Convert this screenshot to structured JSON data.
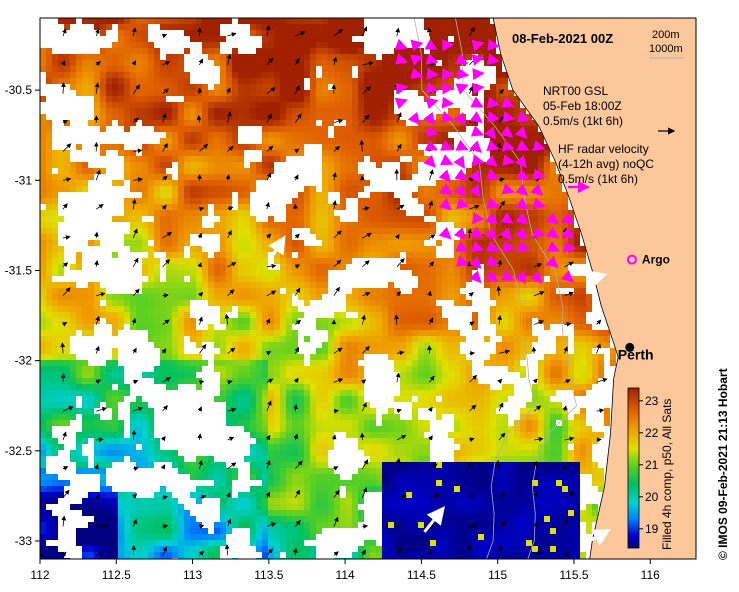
{
  "map": {
    "title": "08-Feb-2021 00Z",
    "scale_labels": [
      "200m",
      "1000m"
    ],
    "gsl_label_lines": [
      "NRT00 GSL",
      "05-Feb 18:00Z",
      "0.5m/s (1kt 6h)"
    ],
    "hf_label_lines": [
      "HF radar velocity",
      "(4-12h avg) noQC",
      "0.5m/s (1kt 6h)"
    ],
    "argo_label": "Argo",
    "city_label": "Perth",
    "credit": "© IMOS 09-Feb-2021 21:13 Hobart",
    "extent": {
      "lon": [
        112,
        116.3
      ],
      "lat": [
        -33.1,
        -30.1
      ]
    },
    "lon_ticks": [
      "112",
      "112.5",
      "113",
      "113.5",
      "114",
      "114.5",
      "115",
      "115.5",
      "116"
    ],
    "lat_ticks": [
      "-30.5",
      "-31",
      "-31.5",
      "-32",
      "-32.5",
      "-33"
    ],
    "argo_position": {
      "lon": 115.88,
      "lat": -31.44
    },
    "perth_position": {
      "lon": 115.82,
      "lat": -31.96
    },
    "colors": {
      "land": "#fcc89b",
      "gsl_arrow": "#000000",
      "hf_arrow": "#ff00ff",
      "argo_marker": "#ff00ff",
      "contour": "#b0b0b0"
    }
  },
  "colorbar": {
    "title": "Filled 4h comp, p50, All Sats",
    "tick_labels": [
      "19",
      "20",
      "21",
      "22",
      "23"
    ],
    "range": [
      18.4,
      23.4
    ]
  }
}
